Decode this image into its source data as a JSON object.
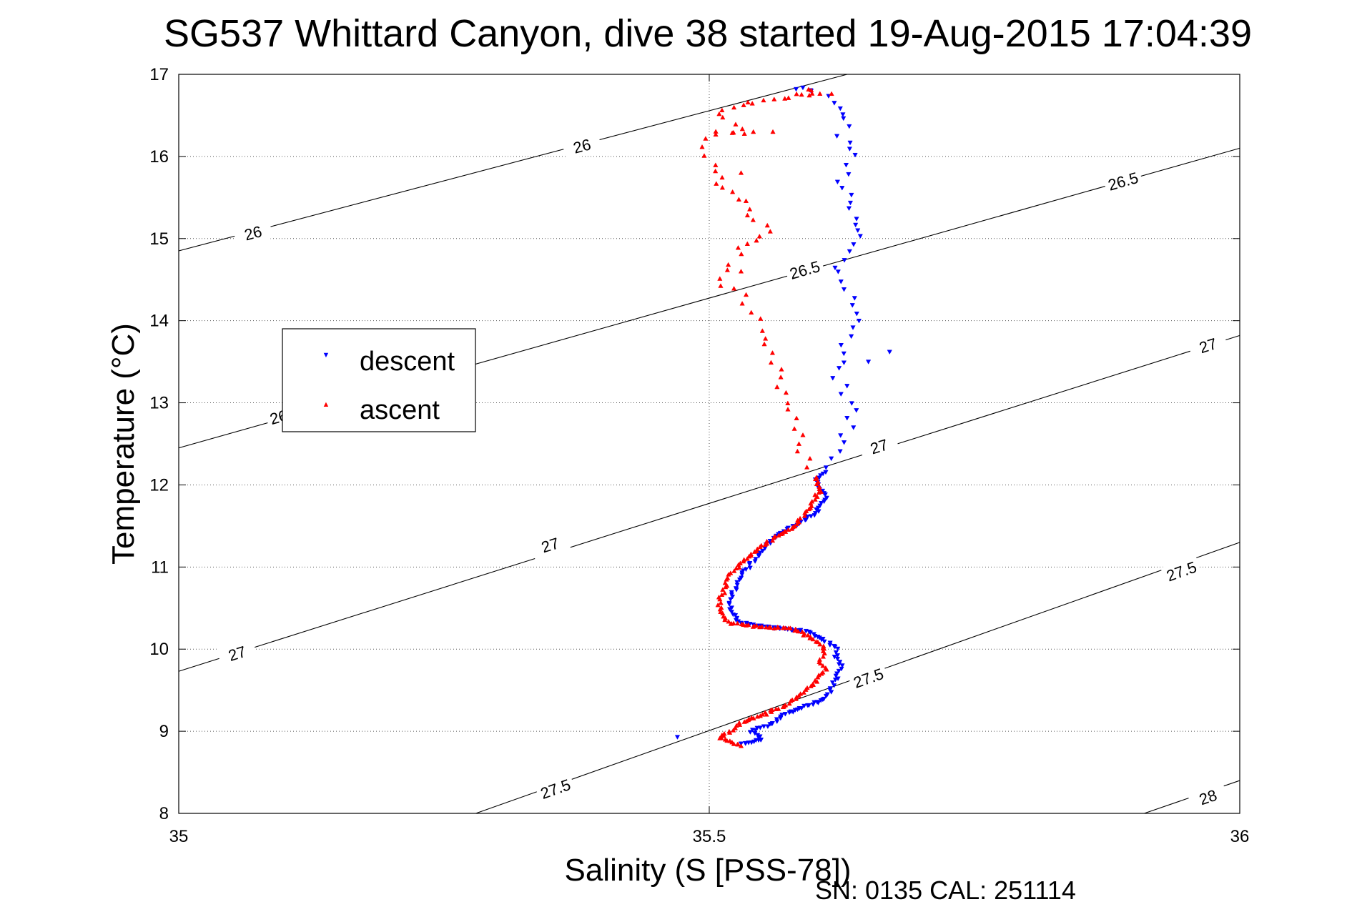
{
  "chart_data": {
    "type": "scatter",
    "title": "SG537 Whittard Canyon, dive 38 started 19-Aug-2015 17:04:39",
    "xlabel": "Salinity (S [PSS-78])",
    "ylabel": "Temperature (°C)",
    "xlim": [
      35,
      36
    ],
    "ylim": [
      8,
      17
    ],
    "xticks": [
      "35",
      "35.5",
      "36"
    ],
    "yticks": [
      "8",
      "9",
      "10",
      "11",
      "12",
      "13",
      "14",
      "15",
      "16",
      "17"
    ],
    "grid": true,
    "legend_position": "left",
    "footer": "SN: 0135  CAL: 251114",
    "series": [
      {
        "name": "descent",
        "color": "#0000ff",
        "marker": "triangle-down",
        "anchors": [
          [
            35.58,
            16.83
          ],
          [
            35.6,
            16.78
          ],
          [
            35.61,
            16.72
          ],
          [
            35.62,
            16.6
          ],
          [
            35.63,
            16.45
          ],
          [
            35.625,
            16.25
          ],
          [
            35.635,
            16.1
          ],
          [
            35.63,
            15.9
          ],
          [
            35.625,
            15.7
          ],
          [
            35.63,
            15.45
          ],
          [
            35.635,
            15.25
          ],
          [
            35.64,
            15.05
          ],
          [
            35.63,
            14.85
          ],
          [
            35.62,
            14.65
          ],
          [
            35.625,
            14.5
          ],
          [
            35.635,
            14.3
          ],
          [
            35.64,
            14.1
          ],
          [
            35.635,
            13.9
          ],
          [
            35.63,
            13.7
          ],
          [
            35.625,
            13.5
          ],
          [
            35.62,
            13.3
          ],
          [
            35.63,
            13.1
          ],
          [
            35.635,
            12.9
          ],
          [
            35.63,
            12.7
          ],
          [
            35.625,
            12.5
          ],
          [
            35.62,
            12.3
          ],
          [
            35.61,
            12.15
          ],
          [
            35.6,
            12.05
          ],
          [
            35.61,
            11.85
          ],
          [
            35.6,
            11.65
          ],
          [
            35.58,
            11.5
          ],
          [
            35.56,
            11.35
          ],
          [
            35.55,
            11.2
          ],
          [
            35.54,
            11.05
          ],
          [
            35.53,
            10.9
          ],
          [
            35.525,
            10.75
          ],
          [
            35.52,
            10.6
          ],
          [
            35.52,
            10.45
          ],
          [
            35.53,
            10.32
          ],
          [
            35.56,
            10.26
          ],
          [
            35.59,
            10.22
          ],
          [
            35.61,
            10.1
          ],
          [
            35.62,
            10.0
          ],
          [
            35.62,
            9.9
          ],
          [
            35.625,
            9.8
          ],
          [
            35.62,
            9.65
          ],
          [
            35.615,
            9.5
          ],
          [
            35.61,
            9.4
          ],
          [
            35.59,
            9.3
          ],
          [
            35.57,
            9.2
          ],
          [
            35.56,
            9.1
          ],
          [
            35.54,
            9.0
          ],
          [
            35.55,
            8.9
          ],
          [
            35.53,
            8.85
          ]
        ],
        "outliers": [
          [
            35.47,
            8.93
          ],
          [
            35.67,
            13.62
          ],
          [
            35.65,
            13.5
          ],
          [
            35.64,
            15.1
          ]
        ]
      },
      {
        "name": "ascent",
        "color": "#ff0000",
        "marker": "triangle-up",
        "anchors": [
          [
            35.59,
            16.8
          ],
          [
            35.61,
            16.78
          ],
          [
            35.56,
            16.72
          ],
          [
            35.51,
            16.52
          ],
          [
            35.52,
            16.4
          ],
          [
            35.53,
            16.35
          ],
          [
            35.54,
            16.3
          ],
          [
            35.51,
            16.3
          ],
          [
            35.495,
            16.2
          ],
          [
            35.5,
            16.0
          ],
          [
            35.51,
            15.65
          ],
          [
            35.525,
            15.5
          ],
          [
            35.54,
            15.3
          ],
          [
            35.555,
            15.1
          ],
          [
            35.55,
            15.02
          ],
          [
            35.53,
            14.9
          ],
          [
            35.52,
            14.7
          ],
          [
            35.51,
            14.5
          ],
          [
            35.53,
            14.3
          ],
          [
            35.54,
            14.1
          ],
          [
            35.545,
            13.9
          ],
          [
            35.55,
            13.7
          ],
          [
            35.56,
            13.5
          ],
          [
            35.565,
            13.3
          ],
          [
            35.57,
            13.1
          ],
          [
            35.575,
            12.9
          ],
          [
            35.58,
            12.7
          ],
          [
            35.585,
            12.5
          ],
          [
            35.59,
            12.3
          ],
          [
            35.6,
            12.1
          ],
          [
            35.605,
            11.95
          ],
          [
            35.6,
            11.85
          ],
          [
            35.59,
            11.65
          ],
          [
            35.58,
            11.5
          ],
          [
            35.56,
            11.35
          ],
          [
            35.545,
            11.2
          ],
          [
            35.53,
            11.05
          ],
          [
            35.52,
            10.9
          ],
          [
            35.515,
            10.75
          ],
          [
            35.51,
            10.6
          ],
          [
            35.51,
            10.45
          ],
          [
            35.52,
            10.32
          ],
          [
            35.55,
            10.27
          ],
          [
            35.58,
            10.25
          ],
          [
            35.6,
            10.1
          ],
          [
            35.61,
            10.0
          ],
          [
            35.605,
            9.85
          ],
          [
            35.61,
            9.75
          ],
          [
            35.6,
            9.6
          ],
          [
            35.59,
            9.5
          ],
          [
            35.58,
            9.4
          ],
          [
            35.57,
            9.3
          ],
          [
            35.55,
            9.2
          ],
          [
            35.53,
            9.1
          ],
          [
            35.52,
            9.0
          ],
          [
            35.51,
            8.92
          ],
          [
            35.53,
            8.82
          ]
        ],
        "outliers": [
          [
            35.56,
            16.3
          ],
          [
            35.53,
            15.8
          ],
          [
            35.53,
            14.6
          ]
        ]
      }
    ],
    "isopycnals": [
      {
        "label": "26",
        "points": [
          [
            35.0,
            14.85
          ],
          [
            35.63,
            17.0
          ]
        ],
        "label_positions": [
          [
            35.07,
            15.07
          ],
          [
            35.38,
            16.13
          ]
        ]
      },
      {
        "label": "26.5",
        "points": [
          [
            35.0,
            12.45
          ],
          [
            36.0,
            16.1
          ]
        ],
        "label_positions": [
          [
            35.1,
            12.85
          ],
          [
            35.59,
            14.62
          ],
          [
            35.89,
            15.7
          ]
        ]
      },
      {
        "label": "27",
        "points": [
          [
            35.0,
            9.73
          ],
          [
            36.0,
            13.82
          ]
        ],
        "label_positions": [
          [
            35.055,
            9.95
          ],
          [
            35.35,
            11.27
          ],
          [
            35.66,
            12.47
          ],
          [
            35.97,
            13.7
          ]
        ]
      },
      {
        "label": "27.5",
        "points": [
          [
            35.28,
            8.0
          ],
          [
            36.0,
            11.3
          ]
        ],
        "label_positions": [
          [
            35.355,
            8.3
          ],
          [
            35.65,
            9.65
          ],
          [
            35.945,
            10.95
          ]
        ]
      },
      {
        "label": "28",
        "points": [
          [
            35.91,
            8.0
          ],
          [
            36.0,
            8.4
          ]
        ],
        "label_positions": [
          [
            35.97,
            8.2
          ]
        ]
      }
    ]
  }
}
